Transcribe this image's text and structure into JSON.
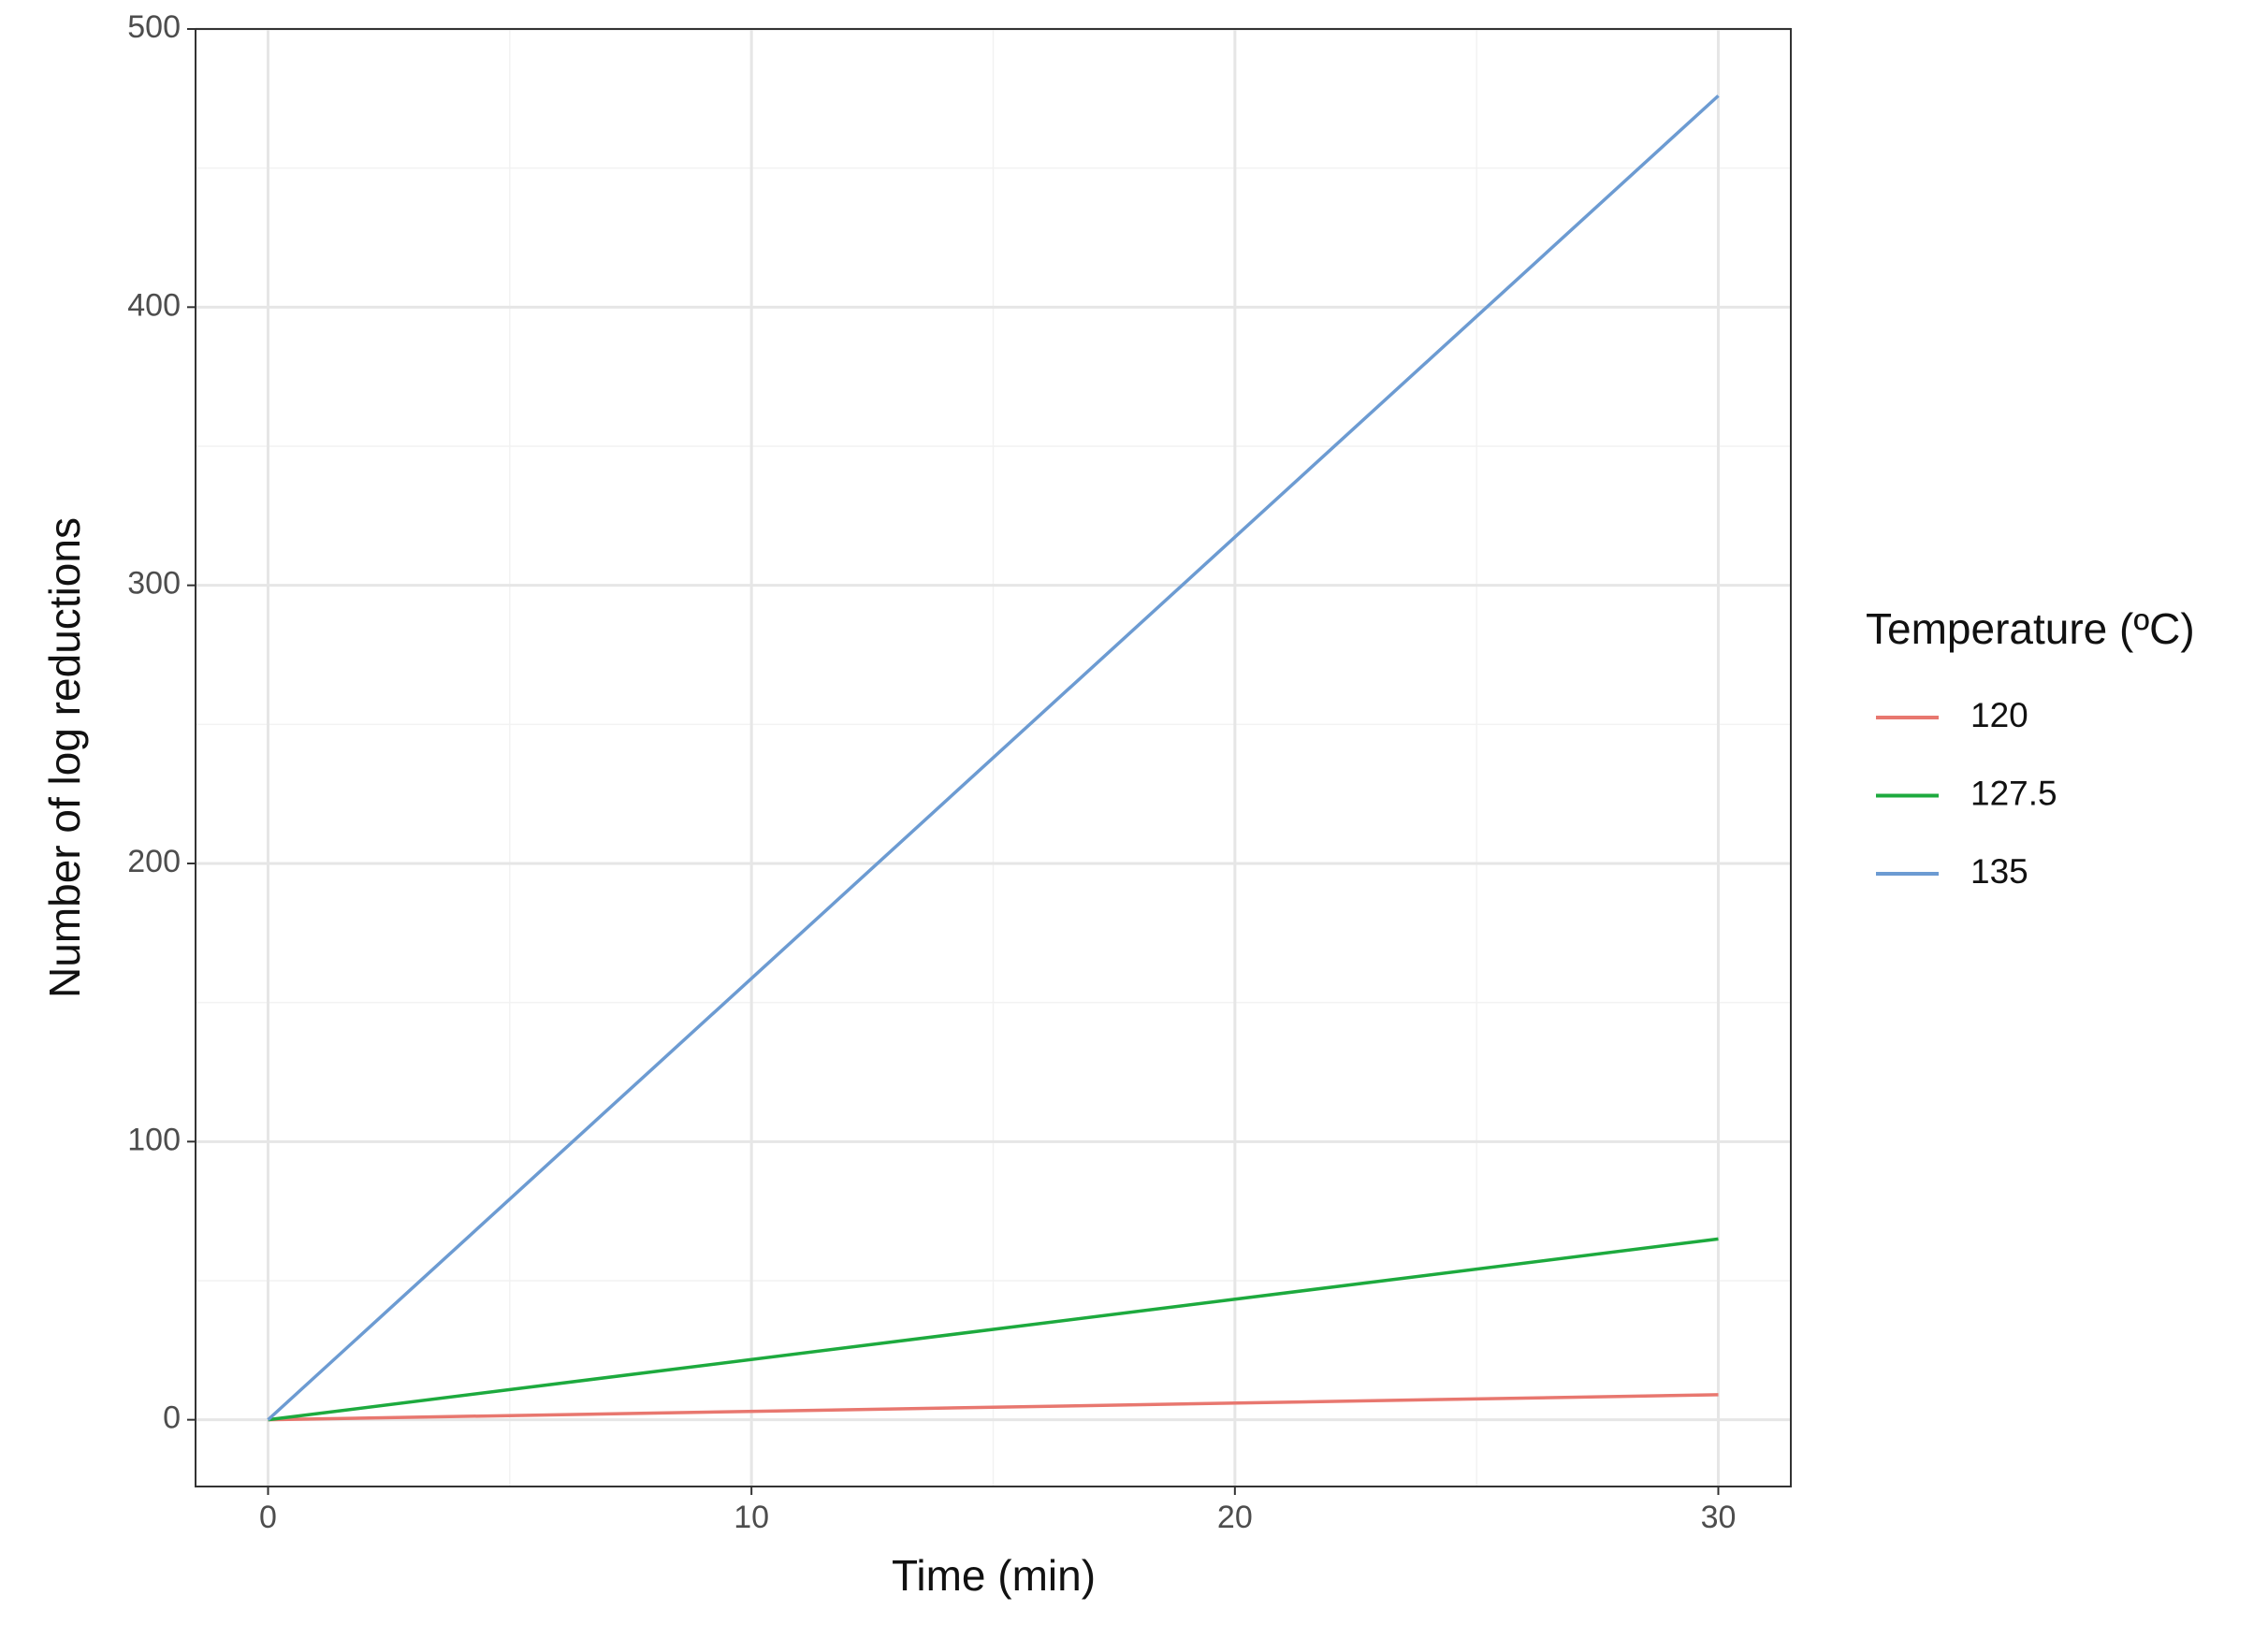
{
  "chart_data": {
    "type": "line",
    "x_label": "Time (min)",
    "y_label": "Number of log reductions",
    "legend_title": "Temperature (ºC)",
    "legend": "right",
    "x": [
      0,
      30
    ],
    "series": [
      {
        "name": "120",
        "color": "#E8776F",
        "values": [
          0,
          9
        ]
      },
      {
        "name": "127.5",
        "color": "#1DAA3E",
        "values": [
          0,
          65
        ]
      },
      {
        "name": "135",
        "color": "#6C9BD2",
        "values": [
          0,
          476
        ]
      }
    ],
    "xlim": [
      -1.5,
      31.5
    ],
    "xticks": [
      0,
      10,
      20,
      30
    ],
    "x_minor_grid": [
      5,
      15,
      25
    ],
    "ylim": [
      -24,
      500
    ],
    "yticks": [
      0,
      100,
      200,
      300,
      400,
      500
    ],
    "y_minor_grid": [
      50,
      150,
      250,
      350,
      450
    ],
    "grid": true
  }
}
